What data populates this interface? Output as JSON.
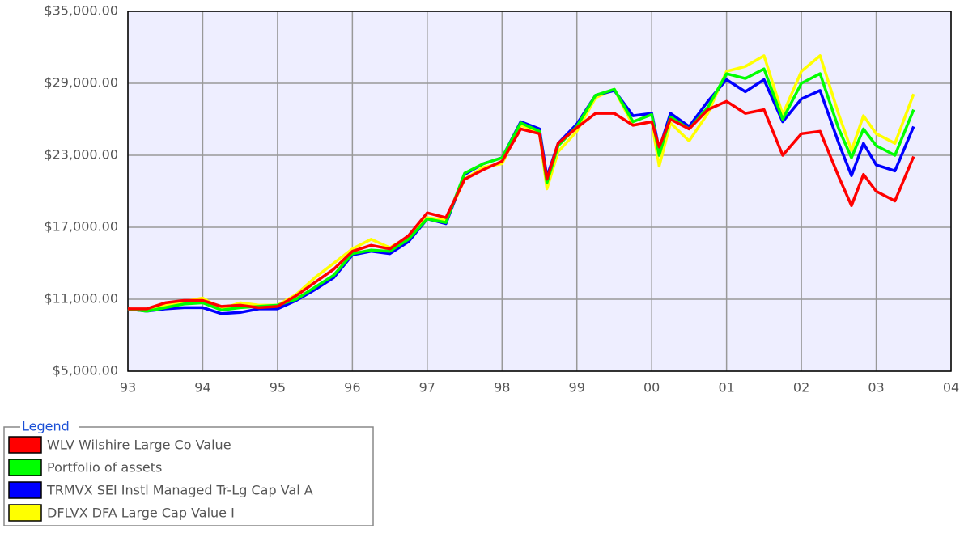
{
  "chart_data": {
    "type": "line",
    "legend_title": "Legend",
    "legend": "bottom-left",
    "grid": true,
    "xlim": [
      1993,
      2004
    ],
    "xticks": [
      {
        "value": 1993,
        "label": "93"
      },
      {
        "value": 1994,
        "label": "94"
      },
      {
        "value": 1995,
        "label": "95"
      },
      {
        "value": 1996,
        "label": "96"
      },
      {
        "value": 1997,
        "label": "97"
      },
      {
        "value": 1998,
        "label": "98"
      },
      {
        "value": 1999,
        "label": "99"
      },
      {
        "value": 2000,
        "label": "00"
      },
      {
        "value": 2001,
        "label": "01"
      },
      {
        "value": 2002,
        "label": "02"
      },
      {
        "value": 2003,
        "label": "03"
      },
      {
        "value": 2004,
        "label": "04"
      }
    ],
    "ylim": [
      5000,
      35000
    ],
    "yticks": [
      {
        "value": 5000,
        "label": "$5,000.00"
      },
      {
        "value": 11000,
        "label": "$11,000.00"
      },
      {
        "value": 17000,
        "label": "$17,000.00"
      },
      {
        "value": 23000,
        "label": "$23,000.00"
      },
      {
        "value": 29000,
        "label": "$29,000.00"
      },
      {
        "value": 35000,
        "label": "$35,000.00"
      }
    ],
    "x": [
      1993,
      1993.25,
      1993.5,
      1993.75,
      1994,
      1994.25,
      1994.5,
      1994.75,
      1995,
      1995.25,
      1995.5,
      1995.75,
      1996,
      1996.25,
      1996.5,
      1996.75,
      1997,
      1997.25,
      1997.5,
      1997.75,
      1998,
      1998.25,
      1998.5,
      1998.6,
      1998.75,
      1999,
      1999.25,
      1999.5,
      1999.75,
      2000,
      2000.1,
      2000.25,
      2000.5,
      2000.75,
      2001,
      2001.25,
      2001.5,
      2001.75,
      2002,
      2002.25,
      2002.5,
      2002.67,
      2002.83,
      2003,
      2003.25,
      2003.5
    ],
    "series": [
      {
        "name": "WLV Wilshire Large Co Value",
        "color": "#ff0000",
        "values": [
          10200,
          10200,
          10700,
          10900,
          10900,
          10400,
          10500,
          10300,
          10400,
          11300,
          12400,
          13500,
          15000,
          15500,
          15200,
          16300,
          18200,
          17800,
          21000,
          21800,
          22500,
          25200,
          24800,
          21000,
          24000,
          25300,
          26500,
          26500,
          25500,
          25800,
          23700,
          26000,
          25200,
          26800,
          27500,
          26500,
          26800,
          23000,
          24800,
          25000,
          21200,
          18800,
          21400,
          20000,
          19200,
          22900
        ]
      },
      {
        "name": "Portfolio of assets",
        "color": "#00ff00",
        "values": [
          10200,
          10000,
          10300,
          10600,
          10700,
          10100,
          10300,
          10400,
          10500,
          11000,
          12000,
          13000,
          14800,
          15100,
          15000,
          16000,
          17700,
          17400,
          21500,
          22300,
          22800,
          25700,
          25000,
          20700,
          23800,
          25400,
          28000,
          28500,
          25800,
          26400,
          23000,
          26200,
          25200,
          27000,
          29800,
          29400,
          30200,
          26000,
          29000,
          29800,
          25200,
          22800,
          25200,
          23800,
          23000,
          26800
        ]
      },
      {
        "name": "TRMVX SEI Instl Managed Tr-Lg Cap Val A",
        "color": "#0000ff",
        "values": [
          10200,
          10000,
          10200,
          10300,
          10300,
          9800,
          9900,
          10200,
          10200,
          10900,
          11800,
          12800,
          14700,
          15000,
          14800,
          15800,
          17700,
          17300,
          21400,
          22300,
          22800,
          25800,
          25200,
          21200,
          24000,
          25600,
          28000,
          28400,
          26300,
          26500,
          23500,
          26500,
          25400,
          27500,
          29300,
          28300,
          29300,
          25800,
          27700,
          28400,
          24000,
          21300,
          24000,
          22200,
          21700,
          25400
        ]
      },
      {
        "name": "DFLVX DFA Large Cap Value I",
        "color": "#ffff00",
        "values": [
          10200,
          10100,
          10500,
          10800,
          11100,
          10200,
          10700,
          10500,
          10500,
          11400,
          12800,
          14000,
          15200,
          16000,
          15300,
          16200,
          17800,
          17600,
          21000,
          22000,
          22300,
          25500,
          24900,
          20200,
          23300,
          25000,
          27800,
          28500,
          25500,
          25800,
          22100,
          25700,
          24200,
          26500,
          30000,
          30400,
          31300,
          26400,
          30000,
          31300,
          26400,
          23400,
          26300,
          24800,
          24000,
          28100
        ]
      }
    ]
  }
}
